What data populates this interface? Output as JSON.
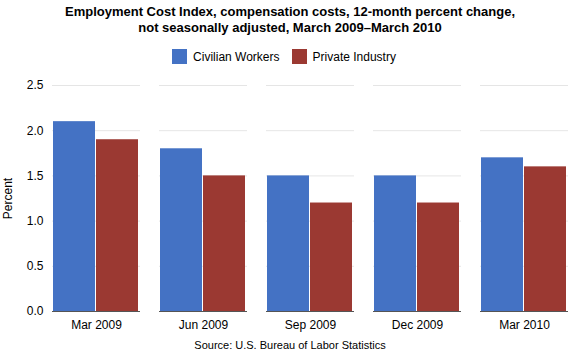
{
  "chart_data": {
    "type": "bar",
    "title": "Employment Cost Index, compensation costs, 12-month percent change,\nnot seasonally adjusted, March 2009–March 2010",
    "categories": [
      "Mar 2009",
      "Jun 2009",
      "Sep 2009",
      "Dec 2009",
      "Mar 2010"
    ],
    "series": [
      {
        "name": "Civilian Workers",
        "color": "#4472C4",
        "values": [
          2.1,
          1.8,
          1.5,
          1.5,
          1.7
        ]
      },
      {
        "name": "Private Industry",
        "color": "#9B3932",
        "values": [
          1.9,
          1.5,
          1.2,
          1.2,
          1.6
        ]
      }
    ],
    "ylabel": "Percent",
    "ylim": [
      0,
      2.5
    ],
    "yticks": [
      {
        "value": 0,
        "label": "0.0"
      },
      0.5,
      {
        "value": 1,
        "label": "1.0"
      },
      1.5,
      {
        "value": 2,
        "label": "2.0"
      },
      2.5
    ],
    "grid": true,
    "legend": "top",
    "source": "Source: U.S. Bureau of Labor Statistics"
  }
}
